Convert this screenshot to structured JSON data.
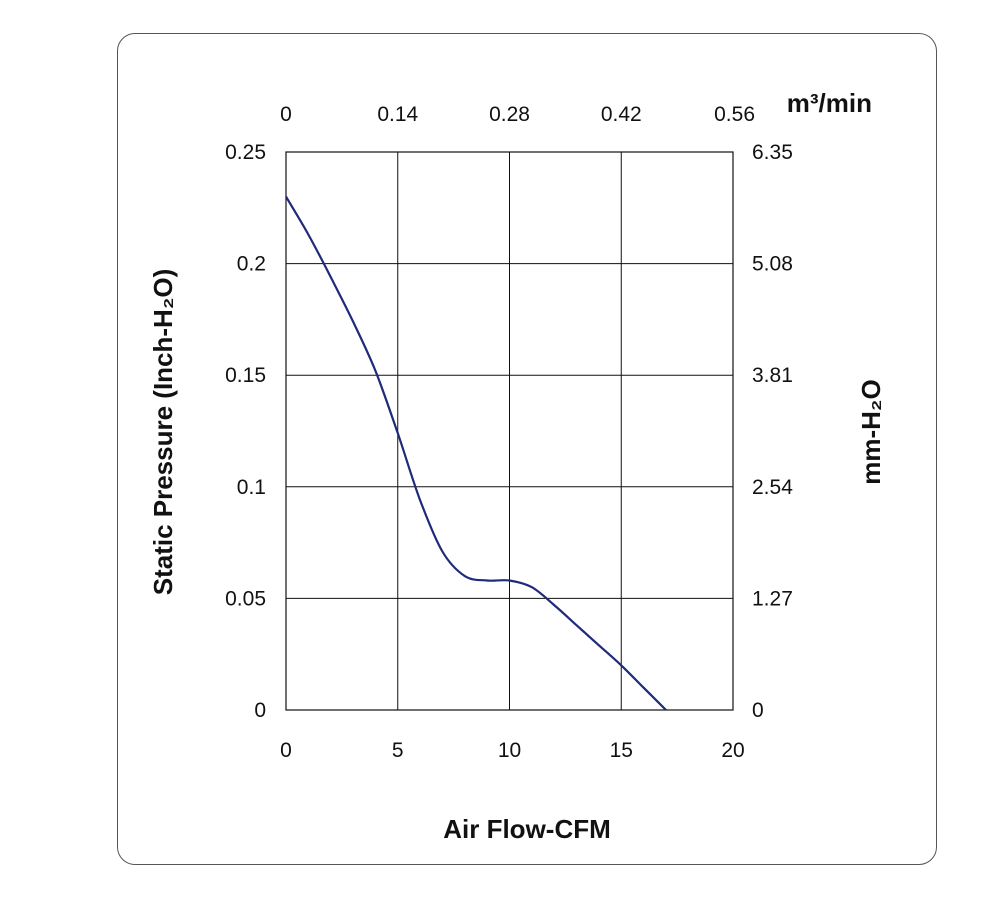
{
  "chart_data": {
    "type": "line",
    "title": "",
    "xlabel": "Air Flow-CFM",
    "ylabel": "Static Pressure (Inch-H₂O)",
    "x2label": "m³/min",
    "y2label": "mm-H₂O",
    "xlim": [
      0,
      20
    ],
    "ylim": [
      0,
      0.25
    ],
    "grid": true,
    "x_ticks": [
      "0",
      "5",
      "10",
      "15",
      "20"
    ],
    "y_ticks": [
      "0",
      "0.05",
      "0.1",
      "0.15",
      "0.2",
      "0.25"
    ],
    "x2_ticks": [
      "0",
      "0.14",
      "0.28",
      "0.42",
      "0.56"
    ],
    "y2_ticks": [
      "0",
      "1.27",
      "2.54",
      "3.81",
      "5.08",
      "6.35"
    ],
    "series": [
      {
        "color": "#1f2a7a",
        "x": [
          0,
          1,
          2,
          3,
          4,
          5,
          6,
          7,
          8,
          9,
          10,
          11,
          12,
          13,
          14,
          15,
          16,
          17
        ],
        "y": [
          0.23,
          0.213,
          0.194,
          0.174,
          0.152,
          0.124,
          0.094,
          0.071,
          0.06,
          0.058,
          0.058,
          0.055,
          0.047,
          0.038,
          0.029,
          0.02,
          0.01,
          0.0
        ]
      }
    ]
  }
}
